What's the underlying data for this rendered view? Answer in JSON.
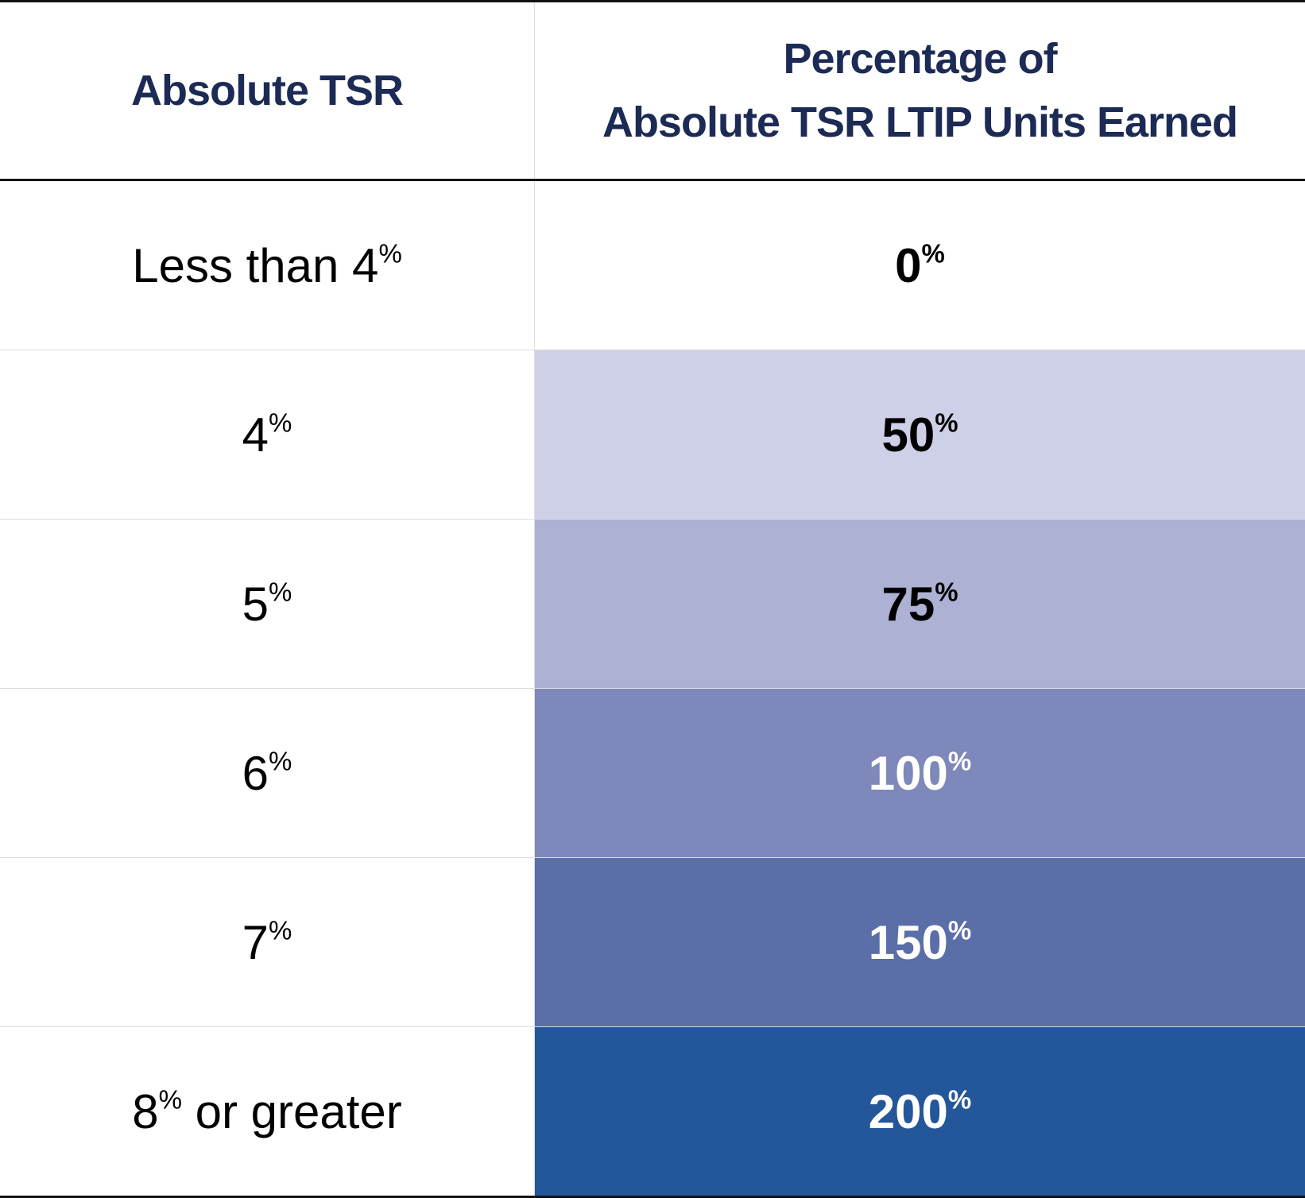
{
  "table": {
    "header": {
      "tsr": "Absolute TSR",
      "earned": [
        "Percentage of",
        "Absolute TSR LTIP Units Earned"
      ]
    },
    "rows": [
      {
        "tsr": [
          "Less than 4",
          "%"
        ],
        "earned": [
          "0",
          "%"
        ],
        "fill": "#ffffff",
        "text_color": "#000000"
      },
      {
        "tsr": [
          "4",
          "%"
        ],
        "earned": [
          "50",
          "%"
        ],
        "fill": "#cdd0e6",
        "text_color": "#000000"
      },
      {
        "tsr": [
          "5",
          "%"
        ],
        "earned": [
          "75",
          "%"
        ],
        "fill": "#adb1d3",
        "text_color": "#000000"
      },
      {
        "tsr": [
          "6",
          "%"
        ],
        "earned": [
          "100",
          "%"
        ],
        "fill": "#7e88ba",
        "text_color": "#ffffff"
      },
      {
        "tsr": [
          "7",
          "%"
        ],
        "earned": [
          "150",
          "%"
        ],
        "fill": "#5a6ea8",
        "text_color": "#ffffff"
      },
      {
        "tsr": [
          "8",
          "%",
          " or greater"
        ],
        "earned": [
          "200",
          "%"
        ],
        "fill": "#245799",
        "text_color": "#ffffff"
      }
    ]
  }
}
